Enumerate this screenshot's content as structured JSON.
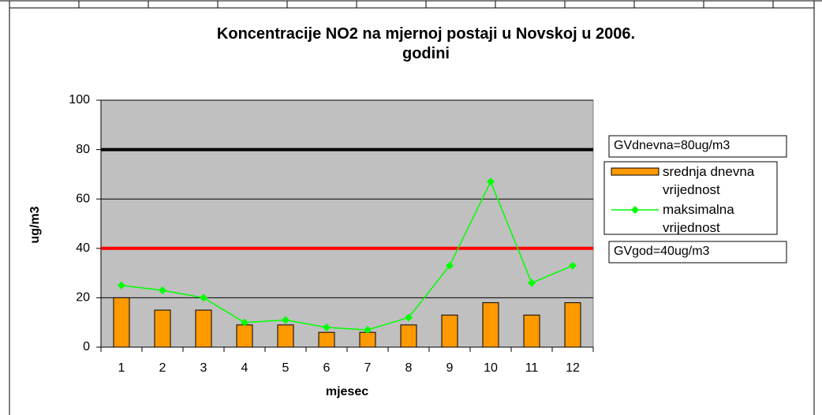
{
  "chart_data": {
    "type": "bar",
    "title": [
      "Koncentracije NO2 na mjernoj postaji u Novskoj u 2006.",
      "godini"
    ],
    "x_label": "mjesec",
    "y_label": "ug/m3",
    "categories": [
      "1",
      "2",
      "3",
      "4",
      "5",
      "6",
      "7",
      "8",
      "9",
      "10",
      "11",
      "12"
    ],
    "series": [
      {
        "name": "srednja dnevna vrijednost",
        "type": "bar",
        "color": "#ff9900",
        "values": [
          20,
          15,
          15,
          9,
          9,
          6,
          6,
          9,
          13,
          18,
          13,
          18
        ]
      },
      {
        "name": "maksimalna vrijednost",
        "type": "line",
        "color": "#00ff00",
        "values": [
          25,
          23,
          20,
          10,
          11,
          8,
          7,
          12,
          33,
          67,
          26,
          33
        ]
      }
    ],
    "reference_lines": [
      {
        "value": 80,
        "label": "GVdnevna=80ug/m3",
        "color": "#000000"
      },
      {
        "value": 40,
        "label": "GVgod=40ug/m3",
        "color": "#ff0000"
      }
    ],
    "ylim": [
      0,
      100
    ],
    "yticks": [
      0,
      20,
      40,
      60,
      80,
      100
    ],
    "grid": true,
    "legend": "right"
  }
}
